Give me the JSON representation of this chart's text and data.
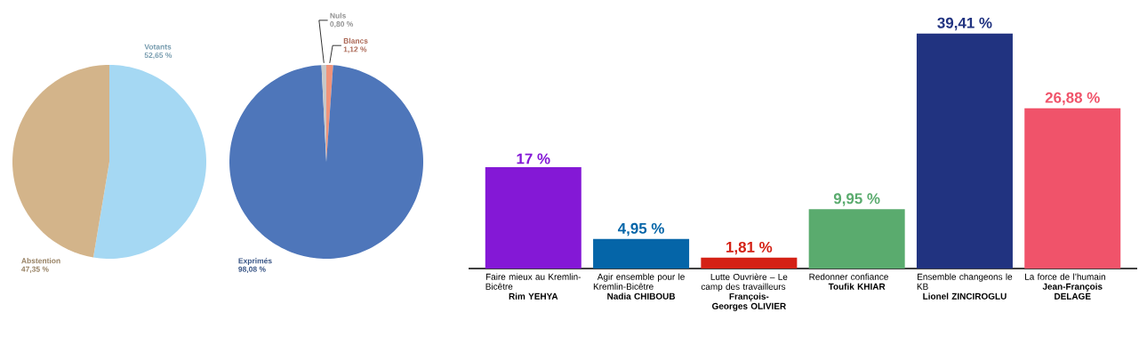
{
  "chart_data": [
    {
      "type": "pie",
      "categories": [
        "Votants",
        "Abstention"
      ],
      "values": [
        52.65,
        47.35
      ],
      "colors": [
        "#a5d8f3",
        "#d3b48a"
      ],
      "value_labels": [
        "52,65 %",
        "47,35 %"
      ]
    },
    {
      "type": "pie",
      "categories": [
        "Blancs",
        "Exprimés",
        "Nuls"
      ],
      "values": [
        1.12,
        98.08,
        0.8
      ],
      "colors": [
        "#f0937a",
        "#4e76ba",
        "#c8c8c8"
      ],
      "value_labels": [
        "1,12 %",
        "98,08 %",
        "0,80 %"
      ]
    },
    {
      "type": "bar",
      "categories": [
        "Faire mieux au Kremlin-Bicêtre **Rim YEHYA**",
        "Agir ensemble pour le Kremlin-Bicêtre **Nadia CHIBOUB**",
        "Lutte Ouvrière – Le camp des travailleurs **François-Georges OLIVIER**",
        "Redonner confiance **Toufik KHIAR**",
        "Ensemble changeons le KB **Lionel ZINCIROGLU**",
        "La force de l’humain **Jean-François DELAGE**"
      ],
      "values": [
        17,
        4.95,
        1.81,
        9.95,
        39.41,
        26.88
      ],
      "colors": [
        "#8418d6",
        "#0565a8",
        "#d42115",
        "#5aab6e",
        "#213380",
        "#f0536a"
      ],
      "value_labels": [
        "17 %",
        "4,95 %",
        "1,81 %",
        "9,95 %",
        "39,41 %",
        "26,88 %"
      ]
    }
  ]
}
